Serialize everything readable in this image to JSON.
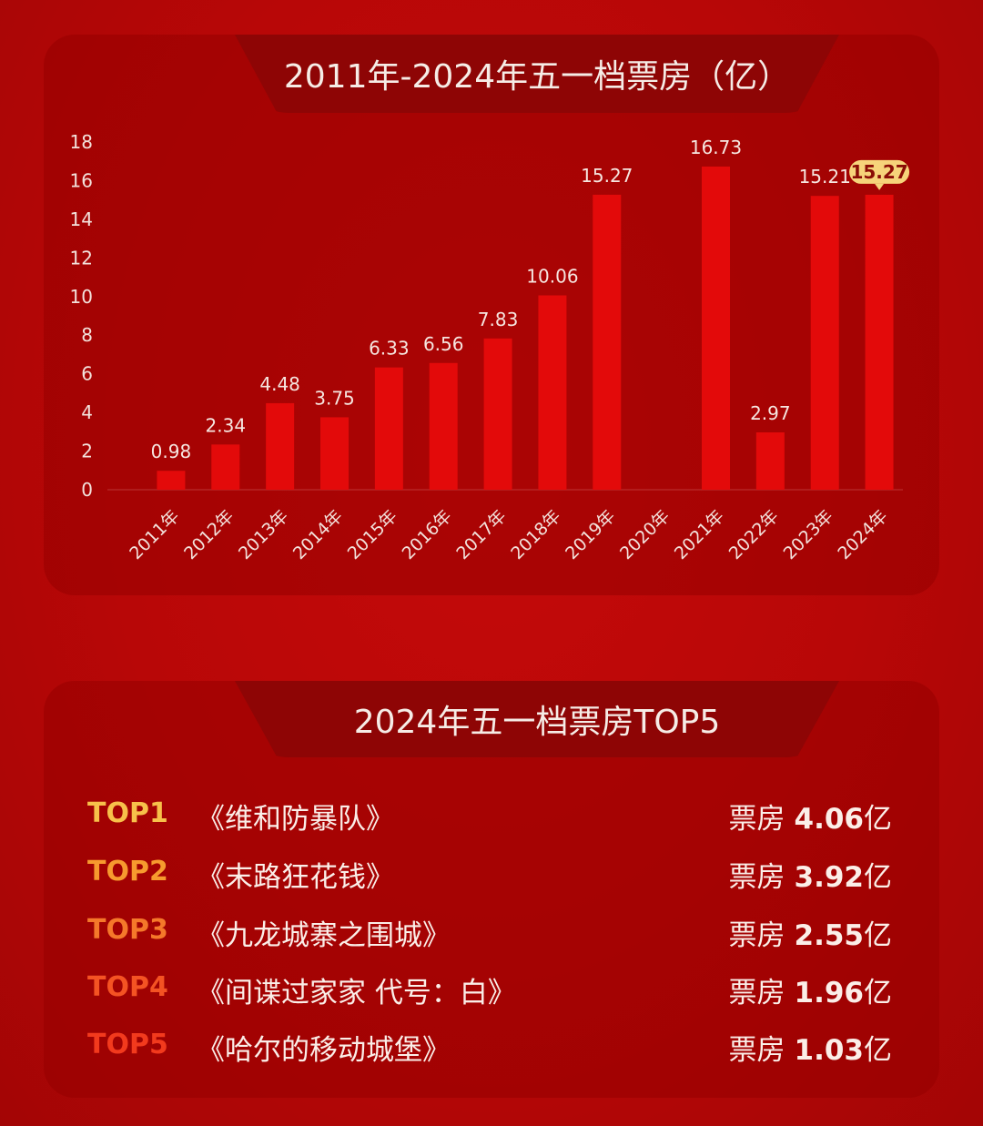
{
  "chart_title": "2011年-2024年五一档票房（亿）",
  "chart_data": {
    "type": "bar",
    "categories": [
      "2011年",
      "2012年",
      "2013年",
      "2014年",
      "2015年",
      "2016年",
      "2017年",
      "2018年",
      "2019年",
      "2020年",
      "2021年",
      "2022年",
      "2023年",
      "2024年"
    ],
    "values": [
      0.98,
      2.34,
      4.48,
      3.75,
      6.33,
      6.56,
      7.83,
      10.06,
      15.27,
      null,
      16.73,
      2.97,
      15.21,
      15.27
    ],
    "value_labels": [
      "0.98",
      "2.34",
      "4.48",
      "3.75",
      "6.33",
      "6.56",
      "7.83",
      "10.06",
      "15.27",
      "",
      "16.73",
      "2.97",
      "15.21",
      "15.27"
    ],
    "ylim": [
      0,
      18
    ],
    "yticks": [
      "0",
      "2",
      "4",
      "6",
      "8",
      "10",
      "12",
      "14",
      "16",
      "18"
    ],
    "highlight_index": 13,
    "bar_color": "#e30a0a",
    "highlight_badge_color": "#f6d37a",
    "grid": false
  },
  "top5": {
    "title": "2024年五一档票房TOP5",
    "box_prefix": "票房",
    "items": [
      {
        "rank": "TOP1",
        "title": "《维和防暴队》",
        "value": "4.06",
        "unit": "亿",
        "color": "#f7c04a"
      },
      {
        "rank": "TOP2",
        "title": "《末路狂花钱》",
        "value": "3.92",
        "unit": "亿",
        "color": "#f79a2e"
      },
      {
        "rank": "TOP3",
        "title": "《九龙城寨之围城》",
        "value": "2.55",
        "unit": "亿",
        "color": "#f5782a"
      },
      {
        "rank": "TOP4",
        "title": "《间谍过家家 代号：白》",
        "value": "1.96",
        "unit": "亿",
        "color": "#f45323"
      },
      {
        "rank": "TOP5",
        "title": "《哈尔的移动城堡》",
        "value": "1.03",
        "unit": "亿",
        "color": "#f23a1d"
      }
    ]
  }
}
